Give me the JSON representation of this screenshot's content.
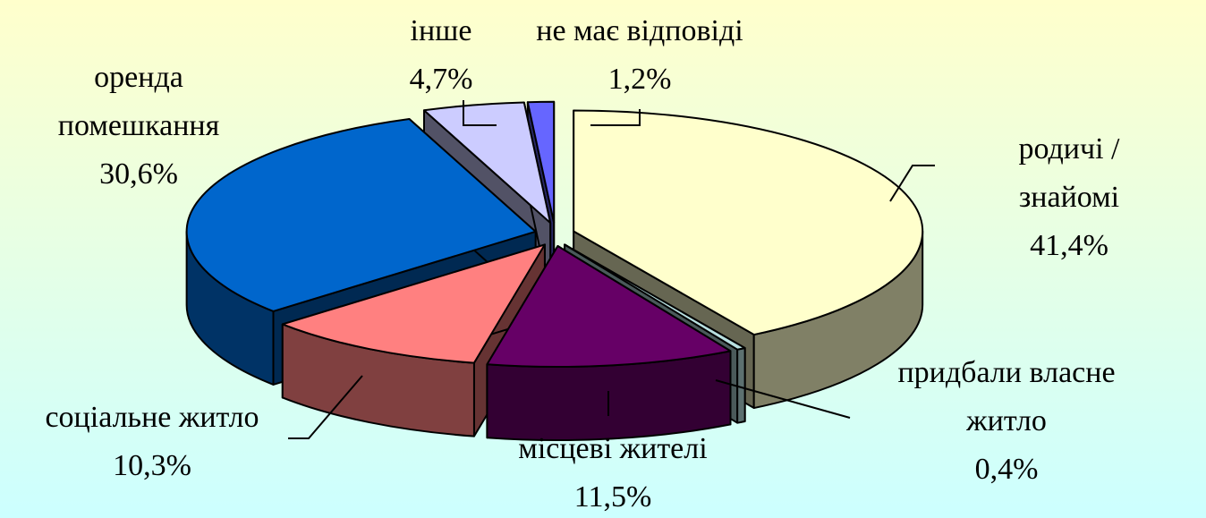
{
  "chart_data": {
    "type": "pie3d",
    "categories": [
      "родичі / знайомі",
      "придбали власне житло",
      "місцеві жителі",
      "соціальне житло",
      "оренда помешкання",
      "інше",
      "не має відповіді"
    ],
    "values": [
      41.4,
      0.4,
      11.5,
      10.3,
      30.6,
      4.7,
      1.2
    ],
    "value_labels": [
      "41,4%",
      "0,4%",
      "11,5%",
      "10,3%",
      "30,6%",
      "4,7%",
      "1,2%"
    ],
    "colors": [
      "#ffffcc",
      "#b8e0e0",
      "#660066",
      "#ff8080",
      "#0066cc",
      "#ccccff",
      "#6666ff"
    ]
  }
}
